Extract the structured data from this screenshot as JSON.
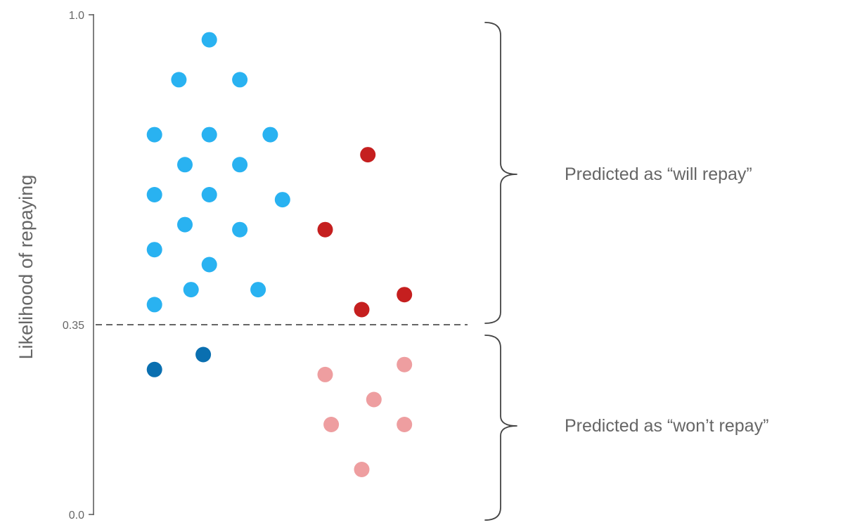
{
  "chart_data": {
    "type": "scatter",
    "title": "",
    "xlabel": "",
    "ylabel": "Likelihood of repaying",
    "ylim": [
      0.0,
      1.0
    ],
    "y_ticks": [
      {
        "value": 0.0,
        "label": "0.0"
      },
      {
        "value": 0.35,
        "label": "0.35"
      },
      {
        "value": 1.0,
        "label": "1.0"
      }
    ],
    "grid": false,
    "threshold": 0.35,
    "annotations": [
      {
        "text": "Predicted as “will repay”",
        "range": [
          0.35,
          1.0
        ]
      },
      {
        "text": "Predicted as “won’t repay”",
        "range": [
          0.0,
          0.35
        ]
      }
    ],
    "series": [
      {
        "color": "#29b2f1",
        "points": [
          {
            "x": 0.19,
            "y": 0.95
          },
          {
            "x": 0.14,
            "y": 0.87
          },
          {
            "x": 0.24,
            "y": 0.87
          },
          {
            "x": 0.1,
            "y": 0.76
          },
          {
            "x": 0.19,
            "y": 0.76
          },
          {
            "x": 0.29,
            "y": 0.76
          },
          {
            "x": 0.15,
            "y": 0.7
          },
          {
            "x": 0.24,
            "y": 0.7
          },
          {
            "x": 0.1,
            "y": 0.64
          },
          {
            "x": 0.19,
            "y": 0.64
          },
          {
            "x": 0.31,
            "y": 0.63
          },
          {
            "x": 0.15,
            "y": 0.58
          },
          {
            "x": 0.24,
            "y": 0.57
          },
          {
            "x": 0.1,
            "y": 0.53
          },
          {
            "x": 0.19,
            "y": 0.5
          },
          {
            "x": 0.16,
            "y": 0.45
          },
          {
            "x": 0.27,
            "y": 0.45
          },
          {
            "x": 0.1,
            "y": 0.42
          }
        ]
      },
      {
        "color": "#0a6fb0",
        "points": [
          {
            "x": 0.18,
            "y": 0.32
          },
          {
            "x": 0.1,
            "y": 0.29
          }
        ]
      },
      {
        "color": "#c51f1f",
        "points": [
          {
            "x": 0.45,
            "y": 0.72
          },
          {
            "x": 0.38,
            "y": 0.57
          },
          {
            "x": 0.51,
            "y": 0.44
          },
          {
            "x": 0.44,
            "y": 0.41
          }
        ]
      },
      {
        "color": "#ee9ea0",
        "points": [
          {
            "x": 0.51,
            "y": 0.3
          },
          {
            "x": 0.38,
            "y": 0.28
          },
          {
            "x": 0.46,
            "y": 0.23
          },
          {
            "x": 0.39,
            "y": 0.18
          },
          {
            "x": 0.51,
            "y": 0.18
          },
          {
            "x": 0.44,
            "y": 0.09
          }
        ]
      }
    ]
  }
}
